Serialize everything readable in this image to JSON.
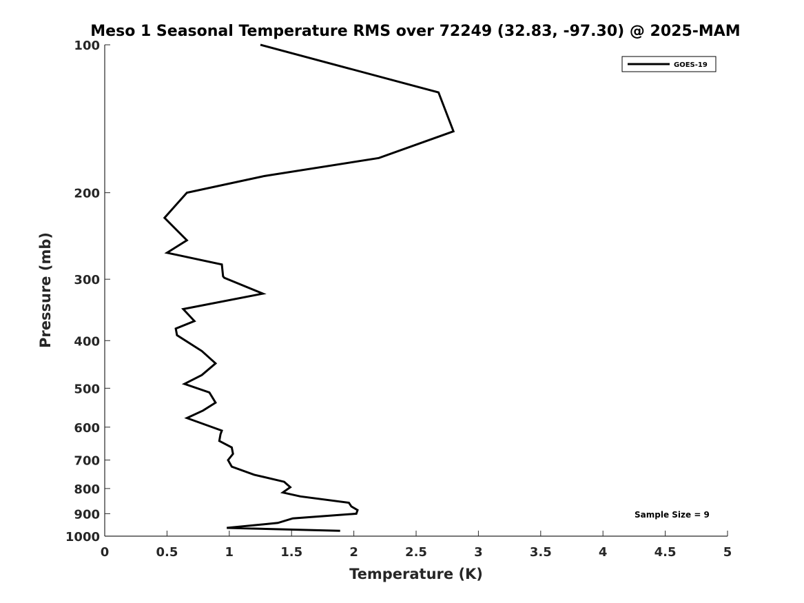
{
  "chart_data": {
    "type": "line",
    "title": "Meso 1 Seasonal Temperature RMS over 72249 (32.83, -97.30) @ 2025-MAM",
    "xlabel": "Temperature (K)",
    "ylabel": "Pressure (mb)",
    "xlim": [
      0,
      5
    ],
    "ylim": [
      100,
      1000
    ],
    "y_scale": "log",
    "y_reversed": true,
    "x_ticks": [
      "0",
      "0.5",
      "1",
      "1.5",
      "2",
      "2.5",
      "3",
      "3.5",
      "4",
      "4.5",
      "5"
    ],
    "y_ticks": [
      "100",
      "200",
      "300",
      "400",
      "500",
      "600",
      "700",
      "800",
      "900",
      "1000"
    ],
    "grid": false,
    "legend": {
      "position": "top-right",
      "entries": [
        "GOES-19"
      ]
    },
    "annotation": "Sample Size = 9",
    "series": [
      {
        "name": "GOES-19",
        "color": "#000000",
        "points": [
          [
            1.25,
            100
          ],
          [
            2.68,
            125
          ],
          [
            2.8,
            150
          ],
          [
            2.2,
            170
          ],
          [
            1.28,
            185
          ],
          [
            0.66,
            200
          ],
          [
            0.48,
            225
          ],
          [
            0.66,
            250
          ],
          [
            0.5,
            265
          ],
          [
            0.94,
            280
          ],
          [
            0.95,
            296
          ],
          [
            0.96,
            298
          ],
          [
            1.27,
            321
          ],
          [
            0.63,
            345
          ],
          [
            0.72,
            365
          ],
          [
            0.57,
            378
          ],
          [
            0.58,
            390
          ],
          [
            0.78,
            420
          ],
          [
            0.89,
            445
          ],
          [
            0.78,
            470
          ],
          [
            0.64,
            490
          ],
          [
            0.84,
            510
          ],
          [
            0.89,
            535
          ],
          [
            0.79,
            555
          ],
          [
            0.66,
            575
          ],
          [
            0.94,
            610
          ],
          [
            0.93,
            620
          ],
          [
            0.92,
            640
          ],
          [
            1.02,
            660
          ],
          [
            1.03,
            680
          ],
          [
            0.99,
            700
          ],
          [
            1.02,
            722
          ],
          [
            1.2,
            750
          ],
          [
            1.44,
            775
          ],
          [
            1.49,
            795
          ],
          [
            1.43,
            815
          ],
          [
            1.57,
            830
          ],
          [
            1.96,
            855
          ],
          [
            1.98,
            870
          ],
          [
            2.03,
            885
          ],
          [
            2.02,
            900
          ],
          [
            1.51,
            920
          ],
          [
            1.39,
            940
          ],
          [
            0.98,
            962
          ],
          [
            1.89,
            975
          ]
        ]
      }
    ]
  }
}
